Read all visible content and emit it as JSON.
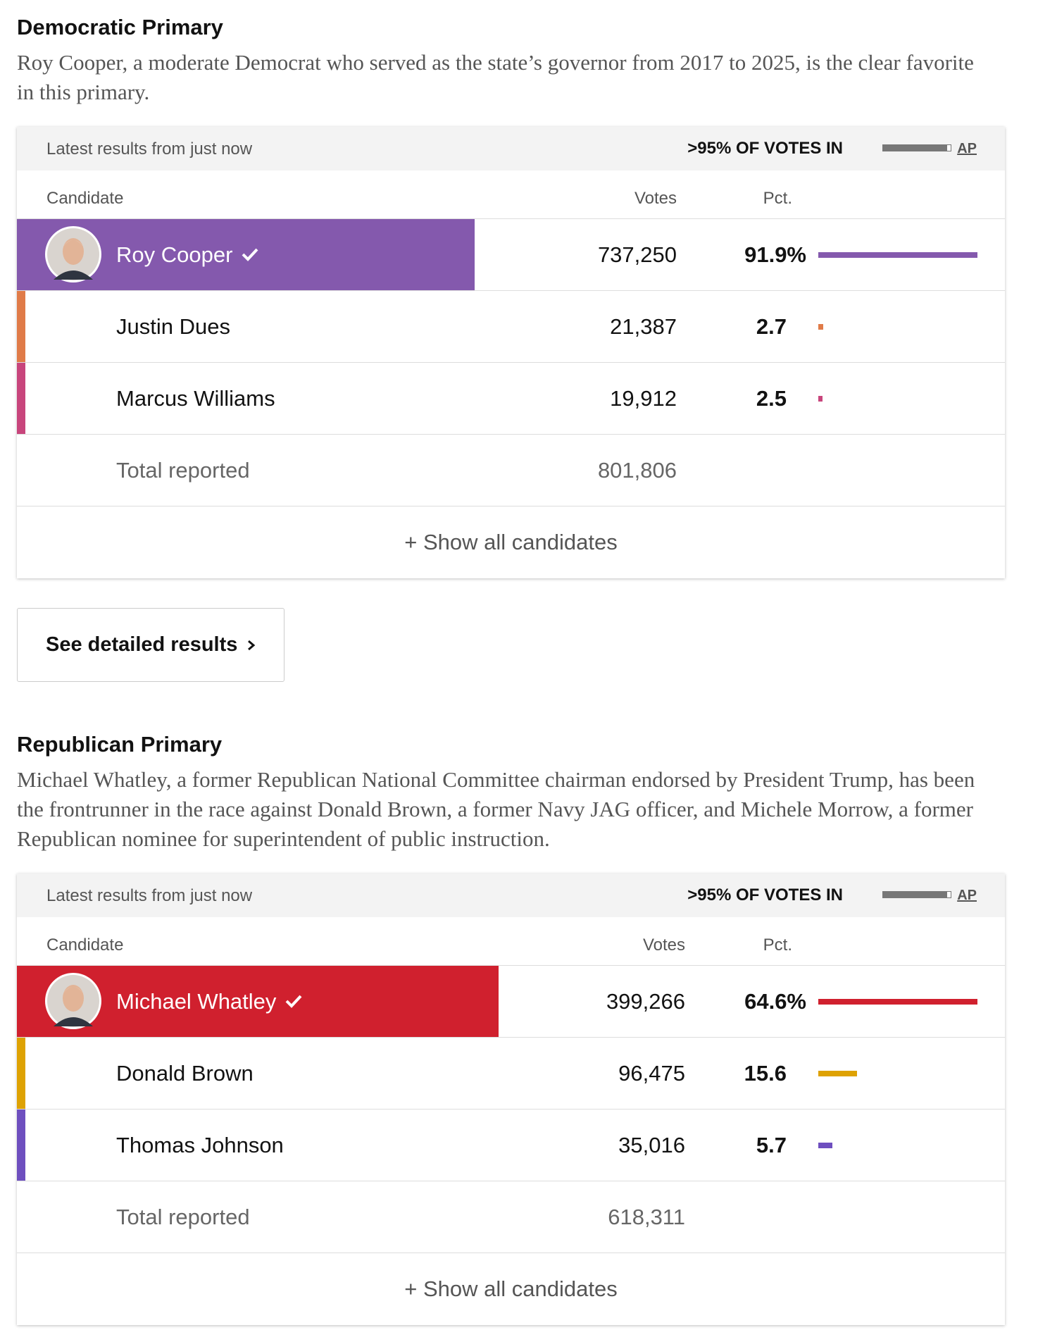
{
  "races": [
    {
      "title": "Democratic Primary",
      "description": "Roy Cooper, a moderate Democrat who served as the state’s governor from 2017 to 2025, is the clear favorite in this primary.",
      "latest": "Latest results from just now",
      "reporting": ">95% OF VOTES IN",
      "source": "AP",
      "headers": {
        "candidate": "Candidate",
        "votes": "Votes",
        "pct": "Pct."
      },
      "candidates": [
        {
          "name": "Roy Cooper",
          "votes": "737,250",
          "pct": 91.9,
          "pct_label": "91.9%",
          "color": "#8459ad",
          "winner": true
        },
        {
          "name": "Justin Dues",
          "votes": "21,387",
          "pct": 2.7,
          "color": "#e07b48"
        },
        {
          "name": "Marcus Williams",
          "votes": "19,912",
          "pct": 2.5,
          "color": "#c8457c"
        }
      ],
      "total_label": "Total reported",
      "total_votes": "801,806",
      "show_all": "+ Show all candidates",
      "button": "See detailed results"
    },
    {
      "title": "Republican Primary",
      "description": "Michael Whatley, a former Republican National Committee chairman endorsed by President Trump, has been the frontrunner in the race against Donald Brown, a former Navy JAG officer, and Michele Morrow, a former Republican nominee for superintendent of public instruction.",
      "latest": "Latest results from just now",
      "reporting": ">95% OF VOTES IN",
      "source": "AP",
      "headers": {
        "candidate": "Candidate",
        "votes": "Votes",
        "pct": "Pct."
      },
      "candidates": [
        {
          "name": "Michael Whatley",
          "votes": "399,266",
          "pct": 64.6,
          "pct_label": "64.6%",
          "color": "#d0202e",
          "winner": true
        },
        {
          "name": "Donald Brown",
          "votes": "96,475",
          "pct": 15.6,
          "color": "#dea203"
        },
        {
          "name": "Thomas Johnson",
          "votes": "35,016",
          "pct": 5.7,
          "color": "#6e4fbf"
        }
      ],
      "total_label": "Total reported",
      "total_votes": "618,311",
      "show_all": "+ Show all candidates"
    }
  ]
}
